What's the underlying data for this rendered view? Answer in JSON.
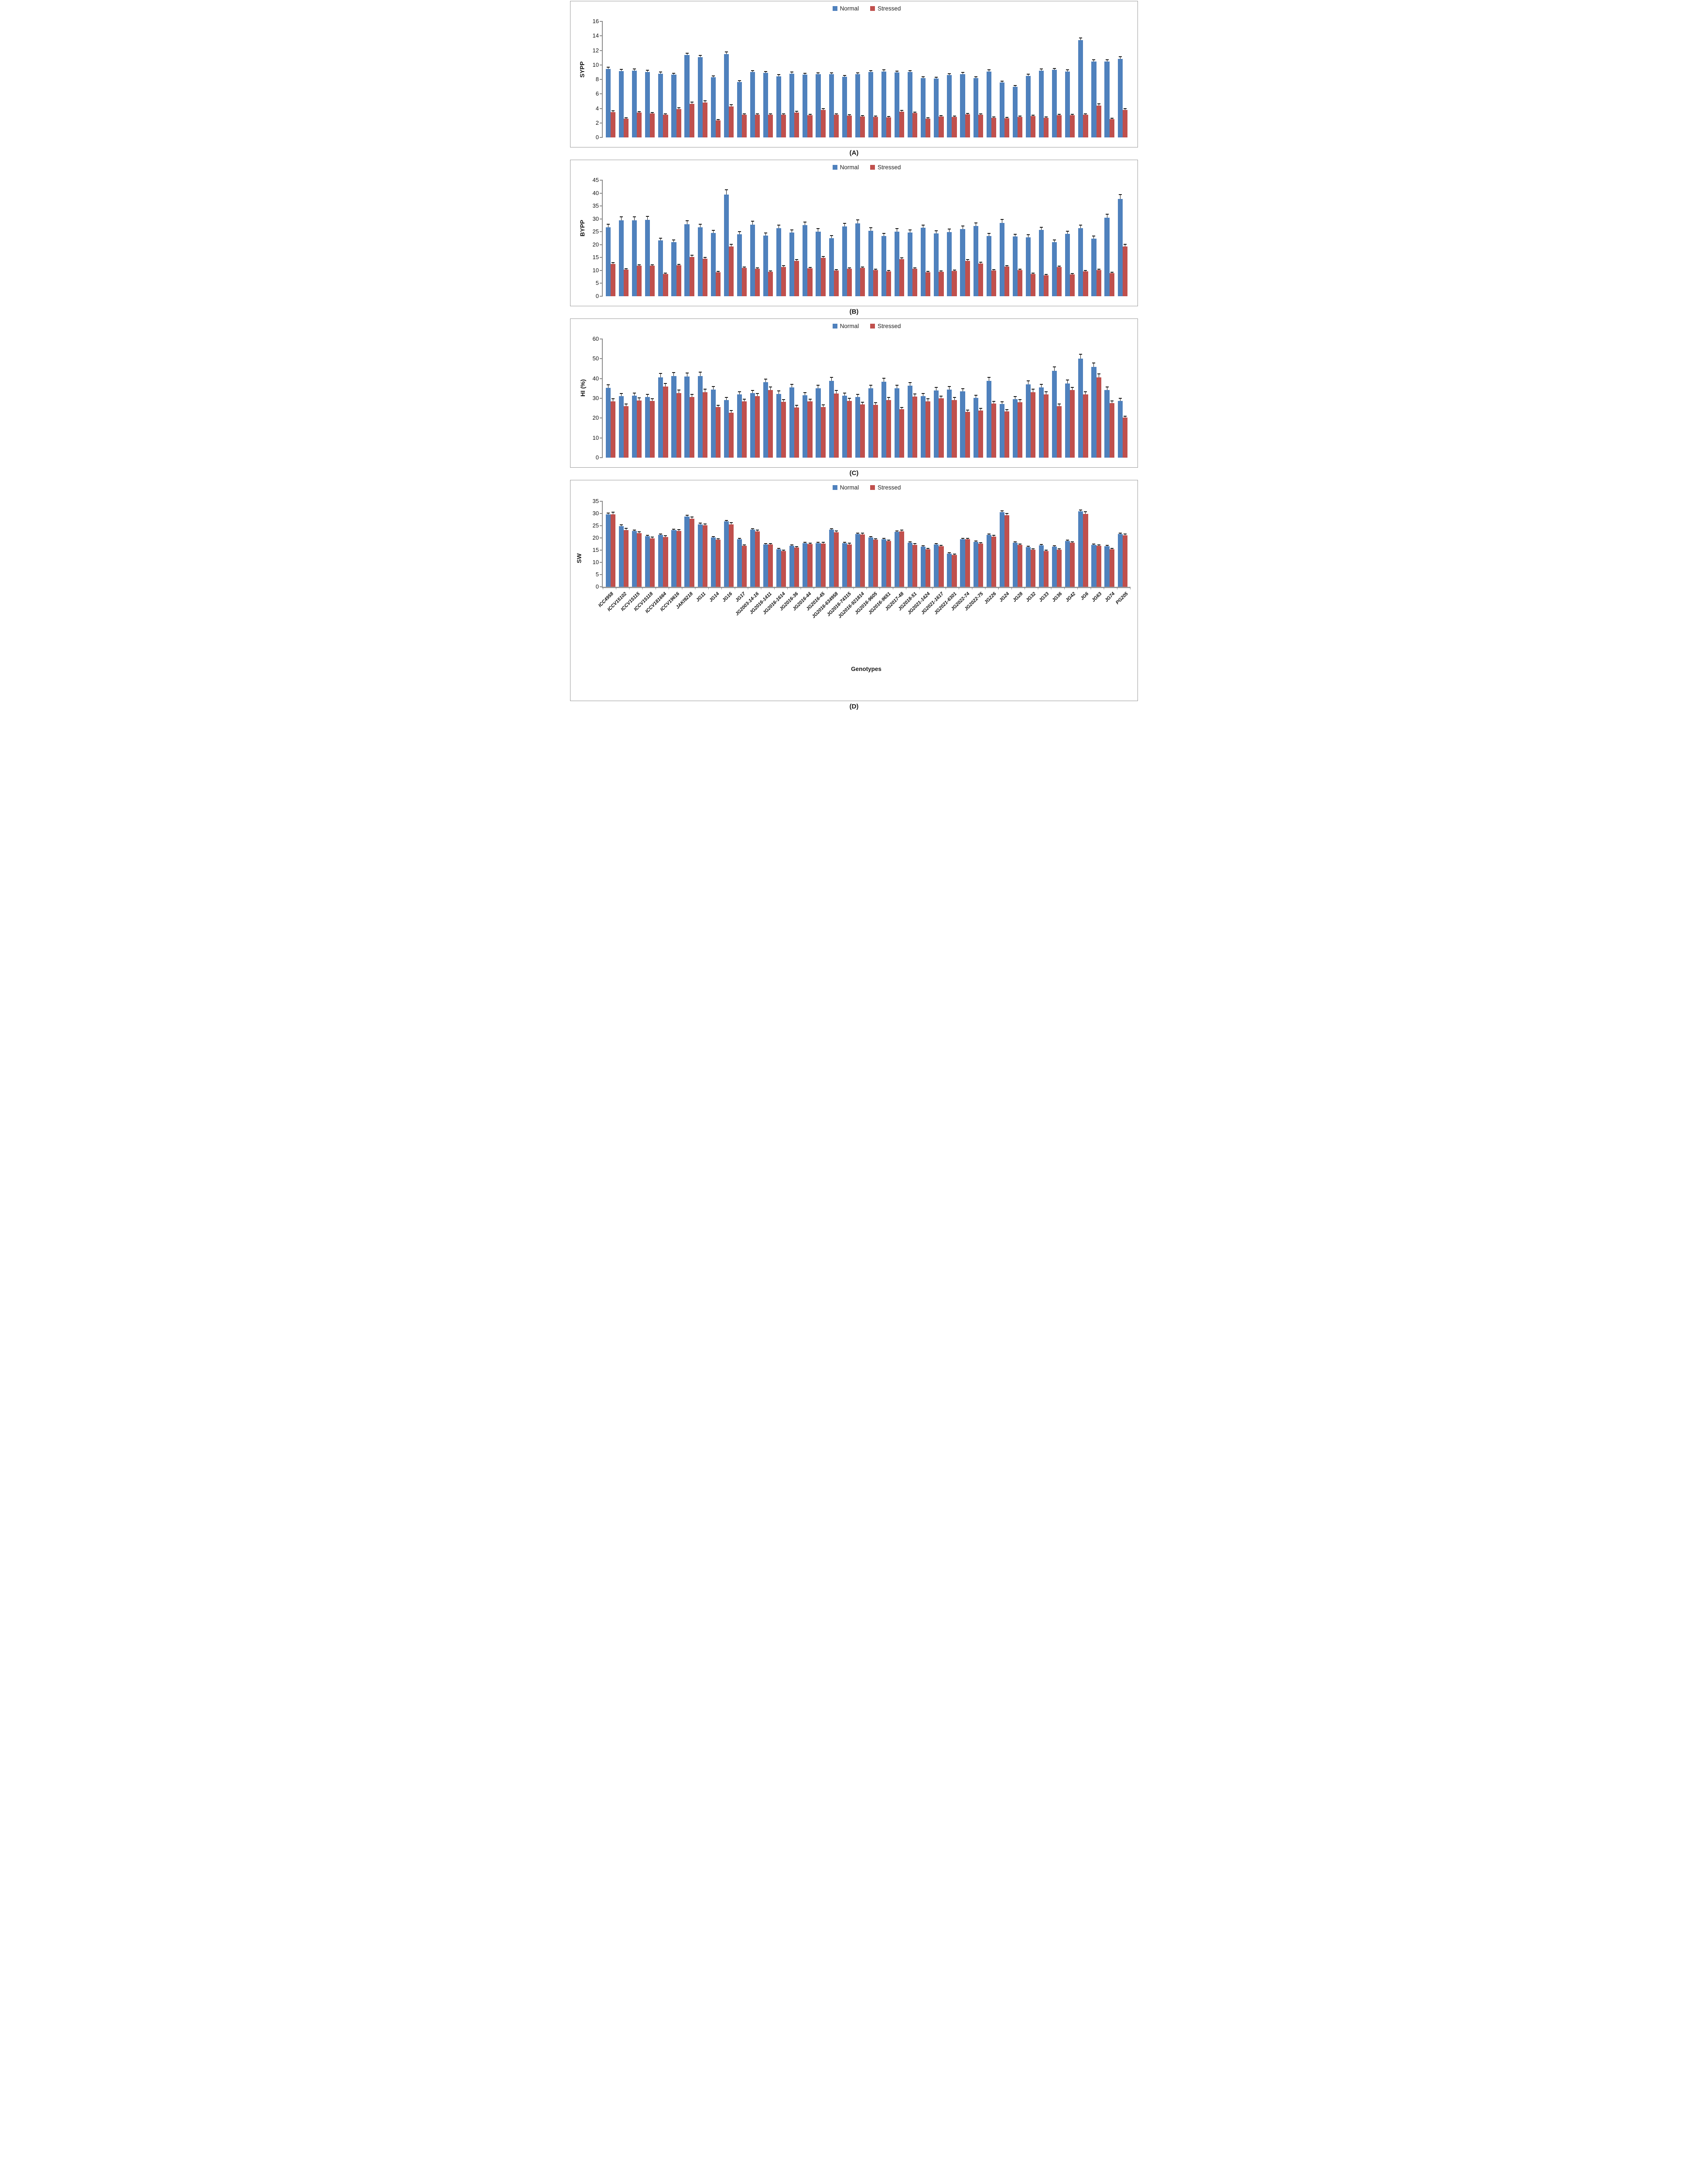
{
  "legend": {
    "normal": "Normal",
    "stressed": "Stressed"
  },
  "colors": {
    "normal": "#4F81BD",
    "stressed": "#C0504D",
    "axis": "#8c8c8c",
    "error_bar": "#1a1a1a"
  },
  "xlabel": "Genotypes",
  "chart_data": {
    "type": "bar",
    "legend_position": "top-center",
    "grid": false,
    "categories": [
      "ICC4958",
      "ICCV15102",
      "ICCV15115",
      "ICCV15118",
      "ICCV181664",
      "ICCV19616",
      "JAKI9218",
      "JG11",
      "JG14",
      "JG16",
      "JG17",
      "JG2003-14-16",
      "JG2016-1411",
      "JG2016-1614",
      "JG2016-36",
      "JG2016-44",
      "JG2016-45",
      "JG2016-634958",
      "JG2016-74315",
      "JG2016-921814",
      "JG2016-9605",
      "JG2016-9651",
      "JG2017-48",
      "JG2018-51",
      "JG2021-1424",
      "JG2021-1617",
      "JG2021-6301",
      "JG2022-74",
      "JG2022-75",
      "JG226",
      "JG24",
      "JG28",
      "JG32",
      "JG33",
      "JG36",
      "JG42",
      "JG6",
      "JG63",
      "JG74",
      "PG205"
    ],
    "xlabel": "Genotypes",
    "charts": [
      {
        "caption": "(A)",
        "ylabel": "SYPP",
        "ylim": [
          0,
          16
        ],
        "ytick_step": 2,
        "err_frac": [
          0.03,
          0.06
        ],
        "show_x_labels": false,
        "series": [
          {
            "name": "Normal",
            "values": [
              9.45,
              9.15,
              9.2,
              9.05,
              8.8,
              8.65,
              11.35,
              11.05,
              8.3,
              11.5,
              7.65,
              9.0,
              8.9,
              8.45,
              8.8,
              8.65,
              8.7,
              8.7,
              8.35,
              8.7,
              9.0,
              9.1,
              8.95,
              9.0,
              8.2,
              8.1,
              8.6,
              8.75,
              8.2,
              9.1,
              7.6,
              7.0,
              8.5,
              9.2,
              9.3,
              9.1,
              13.4,
              10.45,
              10.45,
              10.85
            ]
          },
          {
            "name": "Stressed",
            "values": [
              3.5,
              2.6,
              3.4,
              3.3,
              3.1,
              3.9,
              4.65,
              4.8,
              2.35,
              4.3,
              3.1,
              3.15,
              3.15,
              3.15,
              3.45,
              3.05,
              3.8,
              3.15,
              3.0,
              2.9,
              2.85,
              2.75,
              3.55,
              3.35,
              2.6,
              2.9,
              2.85,
              3.2,
              3.1,
              2.7,
              2.65,
              2.85,
              2.95,
              2.7,
              3.05,
              3.05,
              3.1,
              4.4,
              2.55,
              3.8
            ]
          }
        ]
      },
      {
        "caption": "(B)",
        "ylabel": "BYPP",
        "ylim": [
          0,
          45
        ],
        "ytick_step": 5,
        "err_frac": [
          0.05,
          0.05
        ],
        "show_x_labels": false,
        "series": [
          {
            "name": "Normal",
            "values": [
              26.8,
              29.5,
              29.5,
              29.6,
              21.6,
              21.0,
              28.0,
              26.8,
              24.5,
              39.5,
              24.0,
              27.8,
              23.5,
              26.4,
              24.7,
              27.6,
              25.1,
              22.5,
              27.0,
              28.3,
              25.4,
              23.4,
              25.1,
              24.7,
              26.5,
              24.4,
              24.9,
              26.1,
              27.3,
              23.4,
              28.5,
              23.1,
              22.9,
              25.7,
              21.0,
              24.2,
              26.4,
              22.4,
              30.4,
              37.7
            ]
          },
          {
            "name": "Stressed",
            "values": [
              12.5,
              10.3,
              11.8,
              11.8,
              8.7,
              12.0,
              15.3,
              14.5,
              9.3,
              19.3,
              11.0,
              10.6,
              9.5,
              11.4,
              13.7,
              10.8,
              14.9,
              9.9,
              10.6,
              11.0,
              10.2,
              9.6,
              14.3,
              10.7,
              9.3,
              9.4,
              9.8,
              13.7,
              12.7,
              9.9,
              11.5,
              10.1,
              8.6,
              8.2,
              11.3,
              8.5,
              9.6,
              10.2,
              8.9,
              19.3
            ]
          }
        ]
      },
      {
        "caption": "(C)",
        "ylabel": "HI (%)",
        "ylim": [
          0,
          60
        ],
        "ytick_step": 10,
        "err_frac": [
          0.05,
          0.05
        ],
        "show_x_labels": false,
        "series": [
          {
            "name": "Normal",
            "values": [
              35.2,
              31.2,
              31.4,
              30.6,
              40.7,
              41.2,
              41.0,
              41.3,
              34.5,
              29.2,
              32.0,
              32.6,
              38.1,
              32.3,
              35.5,
              31.5,
              35.0,
              38.9,
              31.4,
              30.6,
              35.0,
              38.4,
              35.0,
              36.3,
              31.1,
              34.0,
              34.5,
              33.5,
              30.2,
              38.8,
              27.1,
              29.6,
              37.1,
              35.6,
              43.9,
              37.6,
              50.1,
              45.9,
              34.2,
              28.7
            ]
          },
          {
            "name": "Stressed",
            "values": [
              28.5,
              26.0,
              28.9,
              28.6,
              36.0,
              32.7,
              30.7,
              33.1,
              25.5,
              22.8,
              28.4,
              31.2,
              34.2,
              28.2,
              25.4,
              28.4,
              25.6,
              32.5,
              28.7,
              27.0,
              26.6,
              29.2,
              24.4,
              30.8,
              28.5,
              29.9,
              29.2,
              23.1,
              23.9,
              27.4,
              23.4,
              28.1,
              33.1,
              31.9,
              26.1,
              34.1,
              31.9,
              40.6,
              27.5,
              20.2
            ]
          }
        ]
      },
      {
        "caption": "(D)",
        "ylabel": "SW",
        "ylim": [
          0,
          35
        ],
        "ytick_step": 5,
        "err_frac": [
          0.025,
          0.035
        ],
        "show_x_labels": true,
        "series": [
          {
            "name": "Normal",
            "values": [
              29.7,
              24.9,
              22.9,
              20.8,
              21.2,
              23.2,
              28.8,
              25.6,
              20.2,
              26.7,
              19.4,
              23.4,
              17.3,
              15.4,
              16.8,
              17.9,
              17.8,
              23.4,
              17.9,
              21.6,
              20.2,
              19.4,
              22.5,
              18.0,
              16.4,
              17.3,
              13.5,
              19.5,
              18.4,
              21.3,
              30.5,
              18.1,
              16.3,
              17.0,
              16.5,
              18.8,
              30.9,
              17.2,
              16.6,
              21.6
            ]
          },
          {
            "name": "Stressed",
            "values": [
              29.6,
              23.3,
              21.9,
              19.9,
              20.4,
              22.8,
              27.8,
              25.1,
              19.2,
              25.5,
              16.8,
              22.6,
              17.3,
              14.6,
              16.0,
              17.5,
              17.7,
              22.3,
              17.4,
              21.4,
              19.2,
              18.7,
              22.6,
              17.2,
              15.4,
              16.6,
              13.0,
              19.4,
              17.6,
              20.5,
              29.2,
              17.1,
              15.1,
              14.7,
              15.2,
              18.0,
              29.9,
              16.7,
              15.3,
              21.0
            ]
          }
        ]
      }
    ]
  }
}
